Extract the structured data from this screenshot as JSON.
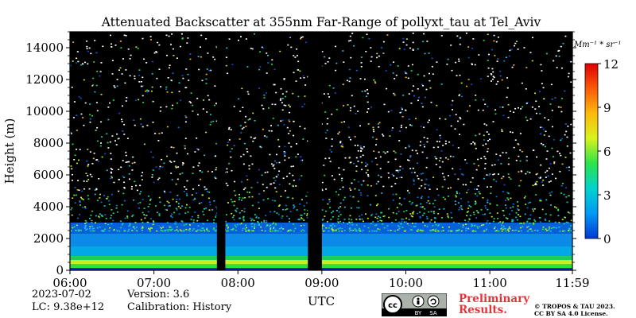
{
  "chart_data": {
    "type": "heatmap",
    "title": "Attenuated Backscatter at 355nm Far-Range of pollyxt_tau at Tel_Aviv",
    "xlabel": "UTC",
    "ylabel": "Height (m)",
    "x_range": [
      "06:00",
      "11:59"
    ],
    "x_ticks": [
      "06:00",
      "07:00",
      "08:00",
      "09:00",
      "10:00",
      "11:00",
      "11:59"
    ],
    "y_range": [
      0,
      15000
    ],
    "y_ticks": [
      0,
      2000,
      4000,
      6000,
      8000,
      10000,
      12000,
      14000
    ],
    "colorbar": {
      "unit_label": "Mm⁻¹ * sr⁻¹",
      "range": [
        0,
        12
      ],
      "ticks": [
        0,
        3,
        6,
        9,
        12
      ],
      "colors": [
        "#0039d4",
        "#0099f5",
        "#00d2cf",
        "#2ae34a",
        "#d8f21c",
        "#fdba0c",
        "#fa5a0a",
        "#e00000"
      ]
    },
    "data_gaps_utc": [
      [
        "07:45",
        "07:51"
      ],
      [
        "08:50",
        "09:00"
      ]
    ]
  },
  "footer": {
    "date": "2023-07-02",
    "lc": "LC: 9.38e+12",
    "version": "Version: 3.6",
    "calibration": "Calibration: History",
    "preliminary_line1": "Preliminary",
    "preliminary_line2": "Results.",
    "copyright_line1": "© TROPOS & TAU 2023.",
    "copyright_line2": "CC BY SA 4.0 License.",
    "license_badge": [
      "cc",
      "BY",
      "SA"
    ]
  }
}
